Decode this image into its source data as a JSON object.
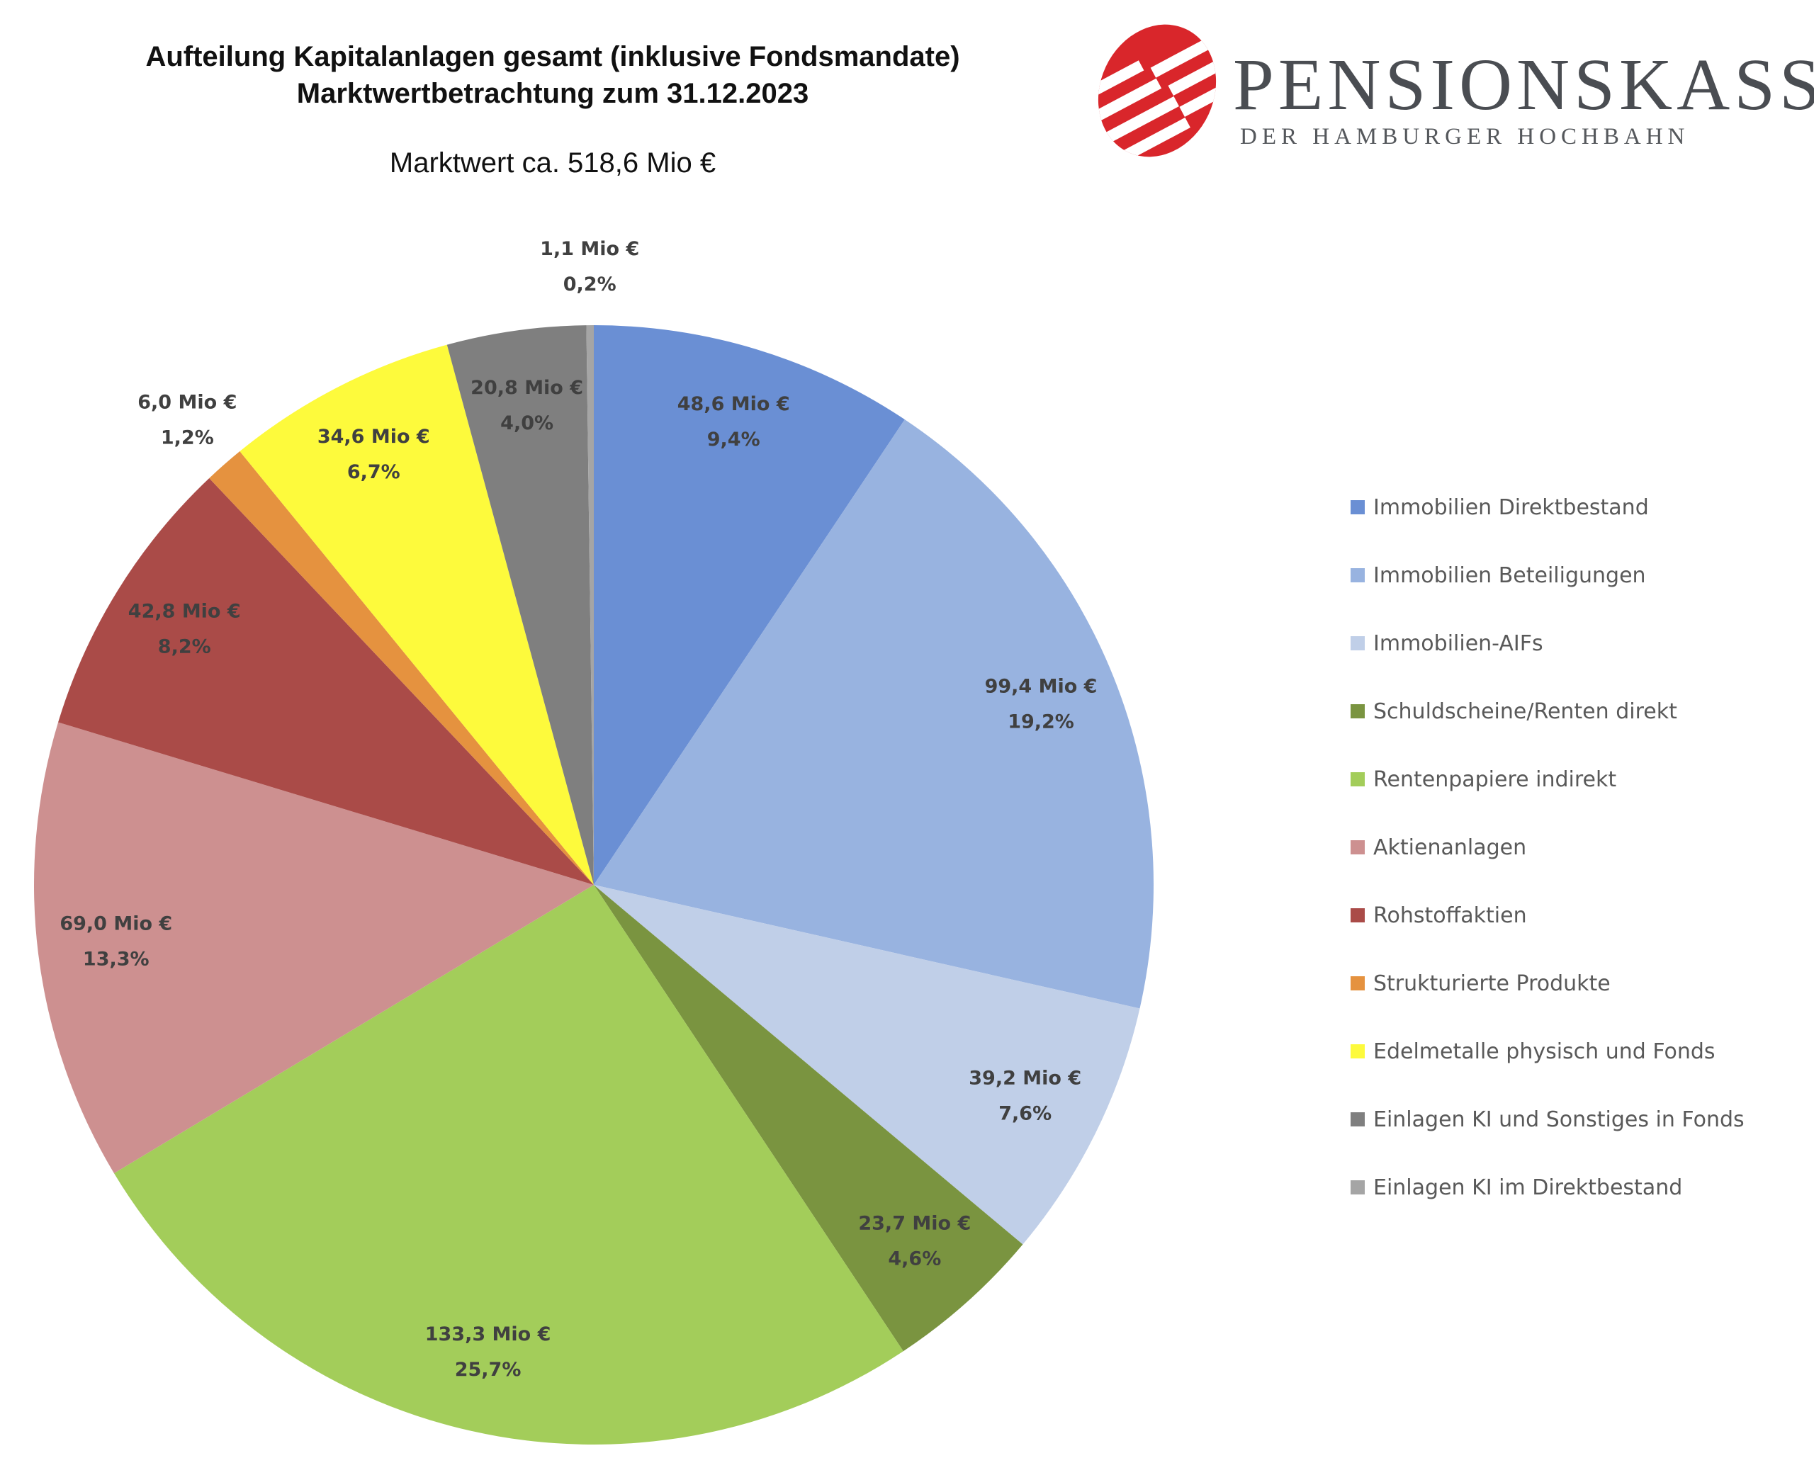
{
  "header": {
    "title_line1": "Aufteilung Kapitalanlagen gesamt (inklusive Fondsmandate)",
    "title_line2": "Marktwertbetrachtung zum 31.12.2023",
    "subtitle": "Marktwert ca. 518,6 Mio €"
  },
  "logo": {
    "name": "PENSIONSKASSE",
    "tagline": "DER HAMBURGER HOCHBAHN",
    "color": "#d9262b"
  },
  "chart_data": {
    "type": "pie",
    "title": "Aufteilung Kapitalanlagen gesamt (inklusive Fondsmandate)",
    "subtitle": "Marktwertbetrachtung zum 31.12.2023",
    "unit": "Mio €",
    "start": "12 o'clock, clockwise",
    "legend_position": "right",
    "slices": [
      {
        "name": "Immobilien Direktbestand",
        "value": 48.6,
        "value_label": "48,6 Mio €",
        "percent_label": "9,4%",
        "color": "#6a8fd4",
        "label_placement": "inside"
      },
      {
        "name": "Immobilien Beteiligungen",
        "value": 99.4,
        "value_label": "99,4 Mio €",
        "percent_label": "19,2%",
        "color": "#98b3e0",
        "label_placement": "inside"
      },
      {
        "name": "Immobilien-AIFs",
        "value": 39.2,
        "value_label": "39,2 Mio €",
        "percent_label": "7,6%",
        "color": "#c0cfe8",
        "label_placement": "inside"
      },
      {
        "name": "Schuldscheine/Renten direkt",
        "value": 23.7,
        "value_label": "23,7 Mio €",
        "percent_label": "4,6%",
        "color": "#7a9440",
        "label_placement": "inside"
      },
      {
        "name": "Rentenpapiere indirekt",
        "value": 133.3,
        "value_label": "133,3 Mio €",
        "percent_label": "25,7%",
        "color": "#a3cd5a",
        "label_placement": "inside"
      },
      {
        "name": "Aktienanlagen",
        "value": 69.0,
        "value_label": "69,0 Mio €",
        "percent_label": "13,3%",
        "color": "#cd9090",
        "label_placement": "inside"
      },
      {
        "name": "Rohstoffaktien",
        "value": 42.8,
        "value_label": "42,8 Mio €",
        "percent_label": "8,2%",
        "color": "#aa4b48",
        "label_placement": "inside"
      },
      {
        "name": "Strukturierte Produkte",
        "value": 6.0,
        "value_label": "6,0 Mio €",
        "percent_label": "1,2%",
        "color": "#e5923f",
        "label_placement": "outside"
      },
      {
        "name": "Edelmetalle physisch und Fonds",
        "value": 34.6,
        "value_label": "34,6 Mio €",
        "percent_label": "6,7%",
        "color": "#fdfa3c",
        "label_placement": "inside"
      },
      {
        "name": "Einlagen KI und Sonstiges in Fonds",
        "value": 20.8,
        "value_label": "20,8 Mio €",
        "percent_label": "4,0%",
        "color": "#7f7f7f",
        "label_placement": "inside"
      },
      {
        "name": "Einlagen KI im Direktbestand",
        "value": 1.1,
        "value_label": "1,1 Mio €",
        "percent_label": "0,2%",
        "color": "#a5a5a5",
        "label_placement": "outside"
      }
    ]
  }
}
